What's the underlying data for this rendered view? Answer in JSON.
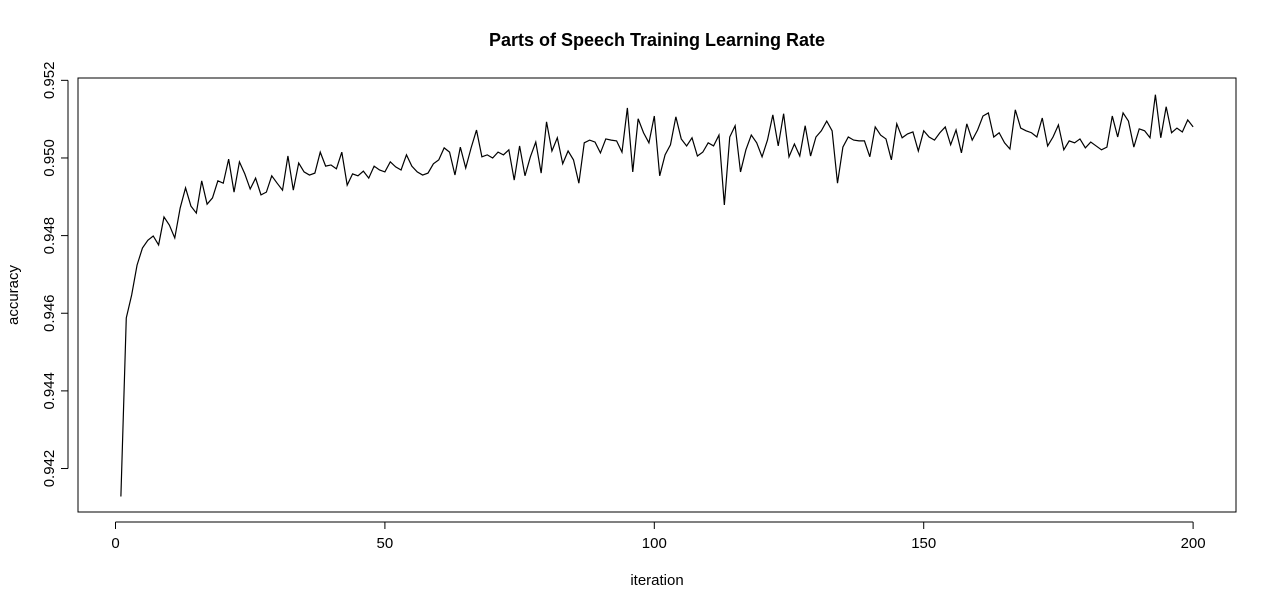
{
  "chart_data": {
    "type": "line",
    "title": "Parts of Speech Training Learning Rate",
    "x_label": "iteration",
    "y_label": "accuracy",
    "x": [
      1,
      2,
      3,
      4,
      5,
      6,
      7,
      8,
      9,
      10,
      11,
      12,
      13,
      14,
      15,
      16,
      17,
      18,
      19,
      20,
      21,
      22,
      23,
      24,
      25,
      26,
      27,
      28,
      29,
      30,
      31,
      32,
      33,
      34,
      35,
      36,
      37,
      38,
      39,
      40,
      41,
      42,
      43,
      44,
      45,
      46,
      47,
      48,
      49,
      50,
      51,
      52,
      53,
      54,
      55,
      56,
      57,
      58,
      59,
      60,
      61,
      62,
      63,
      64,
      65,
      66,
      67,
      68,
      69,
      70,
      71,
      72,
      73,
      74,
      75,
      76,
      77,
      78,
      79,
      80,
      81,
      82,
      83,
      84,
      85,
      86,
      87,
      88,
      89,
      90,
      91,
      92,
      93,
      94,
      95,
      96,
      97,
      98,
      99,
      100,
      101,
      102,
      103,
      104,
      105,
      106,
      107,
      108,
      109,
      110,
      111,
      112,
      113,
      114,
      115,
      116,
      117,
      118,
      119,
      120,
      121,
      122,
      123,
      124,
      125,
      126,
      127,
      128,
      129,
      130,
      131,
      132,
      133,
      134,
      135,
      136,
      137,
      138,
      139,
      140,
      141,
      142,
      143,
      144,
      145,
      146,
      147,
      148,
      149,
      150,
      151,
      152,
      153,
      154,
      155,
      156,
      157,
      158,
      159,
      160,
      161,
      162,
      163,
      164,
      165,
      166,
      167,
      168,
      169,
      170,
      171,
      172,
      173,
      174,
      175,
      176,
      177,
      178,
      179,
      180,
      181,
      182,
      183,
      184,
      185,
      186,
      187,
      188,
      189,
      190,
      191,
      192,
      193,
      194,
      195,
      196,
      197,
      198,
      199,
      200
    ],
    "series": [
      {
        "color": "#000000",
        "values": [
          0.94128,
          0.94588,
          0.94647,
          0.94724,
          0.94768,
          0.94788,
          0.94799,
          0.94776,
          0.94848,
          0.94827,
          0.94794,
          0.94871,
          0.94923,
          0.94876,
          0.94858,
          0.94941,
          0.94881,
          0.94897,
          0.94941,
          0.94935,
          0.94997,
          0.94912,
          0.9499,
          0.94959,
          0.9492,
          0.94948,
          0.94905,
          0.94912,
          0.94954,
          0.94935,
          0.94917,
          0.95005,
          0.94917,
          0.94987,
          0.94964,
          0.94956,
          0.94961,
          0.95015,
          0.94979,
          0.94982,
          0.94972,
          0.95015,
          0.9493,
          0.94959,
          0.94954,
          0.94966,
          0.94948,
          0.94979,
          0.94969,
          0.94964,
          0.9499,
          0.94977,
          0.94969,
          0.95008,
          0.94979,
          0.94964,
          0.94956,
          0.94961,
          0.94985,
          0.94995,
          0.95026,
          0.95015,
          0.94956,
          0.95028,
          0.94974,
          0.95026,
          0.95072,
          0.95003,
          0.95008,
          0.95,
          0.95015,
          0.95008,
          0.95021,
          0.94943,
          0.95031,
          0.94954,
          0.95003,
          0.95041,
          0.94961,
          0.95093,
          0.95018,
          0.95052,
          0.94985,
          0.95018,
          0.94995,
          0.94935,
          0.95039,
          0.95046,
          0.95041,
          0.95013,
          0.95049,
          0.95046,
          0.95044,
          0.95015,
          0.95129,
          0.94964,
          0.95101,
          0.95065,
          0.95039,
          0.95108,
          0.94954,
          0.95008,
          0.95034,
          0.95106,
          0.95049,
          0.95031,
          0.95052,
          0.95005,
          0.95015,
          0.95039,
          0.95031,
          0.95059,
          0.94879,
          0.95054,
          0.95083,
          0.94964,
          0.95021,
          0.95059,
          0.95039,
          0.95003,
          0.95046,
          0.95111,
          0.95031,
          0.95114,
          0.95003,
          0.95036,
          0.95005,
          0.95083,
          0.95005,
          0.95054,
          0.9507,
          0.95095,
          0.9507,
          0.94935,
          0.95028,
          0.95054,
          0.95046,
          0.95044,
          0.95044,
          0.95003,
          0.9508,
          0.95059,
          0.95049,
          0.94995,
          0.95088,
          0.95052,
          0.95062,
          0.95067,
          0.95018,
          0.9507,
          0.95054,
          0.95046,
          0.95065,
          0.9508,
          0.95034,
          0.95072,
          0.95013,
          0.95088,
          0.95046,
          0.95072,
          0.95108,
          0.95116,
          0.95054,
          0.95065,
          0.95039,
          0.95023,
          0.95124,
          0.95077,
          0.9507,
          0.95065,
          0.95054,
          0.95103,
          0.95031,
          0.95054,
          0.95085,
          0.95021,
          0.95044,
          0.95039,
          0.95049,
          0.95026,
          0.95041,
          0.95031,
          0.95021,
          0.95028,
          0.95108,
          0.95054,
          0.95116,
          0.95095,
          0.95028,
          0.95075,
          0.9507,
          0.95052,
          0.95163,
          0.95052,
          0.95132,
          0.95065,
          0.95077,
          0.95067,
          0.95098,
          0.9508
        ]
      }
    ],
    "xlim": [
      -6.96,
      207.96
    ],
    "ylim": [
      0.94088,
      0.95206
    ],
    "xticks": [
      0,
      50,
      100,
      150,
      200
    ],
    "yticks": [
      0.942,
      0.944,
      0.946,
      0.948,
      {
        "value": 0.95,
        "label": "0.950"
      },
      0.952
    ]
  }
}
